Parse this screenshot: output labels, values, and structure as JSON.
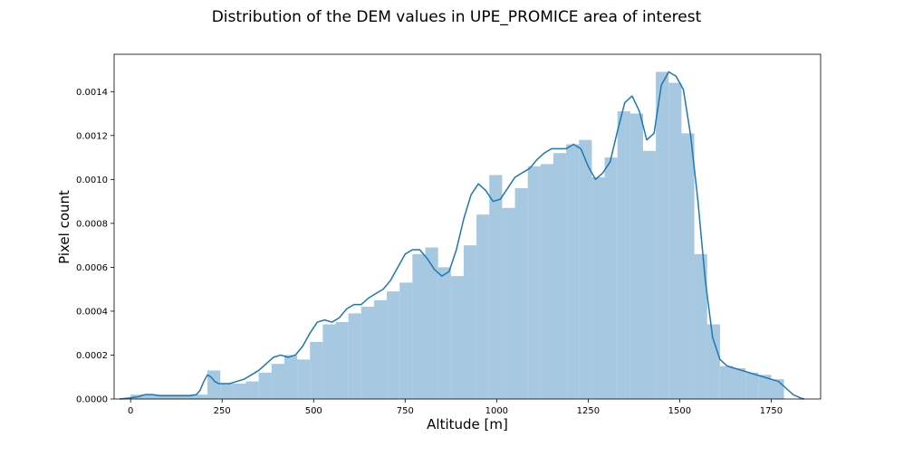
{
  "chart_data": {
    "type": "bar",
    "title": "Distribution of the DEM values in UPE_PROMICE area of interest",
    "xlabel": "Altitude [m]",
    "ylabel": "Pixel count",
    "xlim": [
      -45,
      1885
    ],
    "ylim": [
      0,
      0.00157
    ],
    "x_ticks": [
      0,
      250,
      500,
      750,
      1000,
      1250,
      1500,
      1750
    ],
    "x_tick_labels": [
      "0",
      "250",
      "500",
      "750",
      "1000",
      "1250",
      "1500",
      "1750"
    ],
    "y_ticks": [
      0,
      0.0002,
      0.0004,
      0.0006,
      0.0008,
      0.001,
      0.0012,
      0.0014
    ],
    "y_tick_labels": [
      "0.0000",
      "0.0002",
      "0.0004",
      "0.0006",
      "0.0008",
      "0.0010",
      "0.0012",
      "0.0014"
    ],
    "grid": false,
    "colors": {
      "bars": "#a6c8e0",
      "kde_line": "#1f77b4",
      "axes": "#000000"
    },
    "histogram": {
      "bin_edges": [
        0,
        35,
        70,
        105,
        140,
        175,
        210,
        245,
        280,
        315,
        350,
        385,
        420,
        455,
        490,
        525,
        560,
        595,
        630,
        665,
        700,
        735,
        770,
        805,
        840,
        875,
        910,
        945,
        980,
        1015,
        1050,
        1085,
        1120,
        1155,
        1190,
        1225,
        1260,
        1295,
        1330,
        1365,
        1400,
        1435,
        1470,
        1505,
        1540,
        1575,
        1610,
        1645,
        1680,
        1715,
        1750,
        1785
      ],
      "values": [
        2e-05,
        2e-05,
        2e-05,
        2e-05,
        2e-05,
        2e-05,
        0.00013,
        7e-05,
        7e-05,
        8e-05,
        0.00012,
        0.00016,
        0.0002,
        0.00018,
        0.00026,
        0.00034,
        0.00035,
        0.00039,
        0.00042,
        0.00045,
        0.00049,
        0.00053,
        0.00066,
        0.00069,
        0.0006,
        0.00056,
        0.0007,
        0.00084,
        0.00102,
        0.00087,
        0.00096,
        0.00106,
        0.00107,
        0.00112,
        0.00116,
        0.00118,
        0.00101,
        0.0011,
        0.00131,
        0.0013,
        0.00113,
        0.00149,
        0.00144,
        0.00121,
        0.00066,
        0.00034,
        0.00015,
        0.00014,
        0.00012,
        0.00011,
        9e-05
      ]
    },
    "kde": {
      "x": [
        -30,
        0,
        20,
        40,
        60,
        80,
        100,
        120,
        140,
        160,
        180,
        190,
        200,
        210,
        220,
        230,
        240,
        250,
        270,
        290,
        310,
        330,
        350,
        370,
        390,
        410,
        430,
        450,
        470,
        490,
        510,
        530,
        550,
        570,
        590,
        610,
        630,
        650,
        670,
        690,
        710,
        730,
        750,
        770,
        790,
        810,
        830,
        850,
        870,
        890,
        910,
        930,
        950,
        970,
        990,
        1010,
        1030,
        1050,
        1070,
        1090,
        1110,
        1130,
        1150,
        1170,
        1190,
        1210,
        1230,
        1250,
        1270,
        1290,
        1310,
        1330,
        1350,
        1370,
        1390,
        1410,
        1430,
        1450,
        1470,
        1490,
        1510,
        1530,
        1550,
        1570,
        1590,
        1610,
        1630,
        1650,
        1670,
        1690,
        1710,
        1730,
        1750,
        1770,
        1790,
        1810,
        1830,
        1840
      ],
      "y": [
        0,
        5e-06,
        1e-05,
        2e-05,
        2e-05,
        1.5e-05,
        1.5e-05,
        1.5e-05,
        1.5e-05,
        1.5e-05,
        2e-05,
        4e-05,
        8e-05,
        0.00011,
        0.0001,
        8e-05,
        7e-05,
        7e-05,
        7e-05,
        8e-05,
        9e-05,
        0.00011,
        0.00013,
        0.00016,
        0.00019,
        0.0002,
        0.00019,
        0.0002,
        0.00024,
        0.0003,
        0.00035,
        0.00036,
        0.00035,
        0.00037,
        0.00041,
        0.00043,
        0.00043,
        0.00046,
        0.00048,
        0.0005,
        0.00054,
        0.0006,
        0.00066,
        0.00068,
        0.00068,
        0.00064,
        0.00059,
        0.00056,
        0.00058,
        0.00068,
        0.00082,
        0.00093,
        0.00098,
        0.00095,
        0.0009,
        0.00091,
        0.00096,
        0.00101,
        0.00103,
        0.00105,
        0.00109,
        0.00112,
        0.00114,
        0.00114,
        0.00114,
        0.00116,
        0.00114,
        0.00106,
        0.001,
        0.00103,
        0.00108,
        0.00122,
        0.00135,
        0.00138,
        0.00131,
        0.00118,
        0.00121,
        0.00143,
        0.00149,
        0.00147,
        0.00141,
        0.0012,
        0.0009,
        0.00054,
        0.00028,
        0.00018,
        0.00015,
        0.00014,
        0.00013,
        0.00012,
        0.00011,
        0.0001,
        9e-05,
        8e-05,
        5e-05,
        2e-05,
        5e-06,
        0
      ]
    }
  }
}
